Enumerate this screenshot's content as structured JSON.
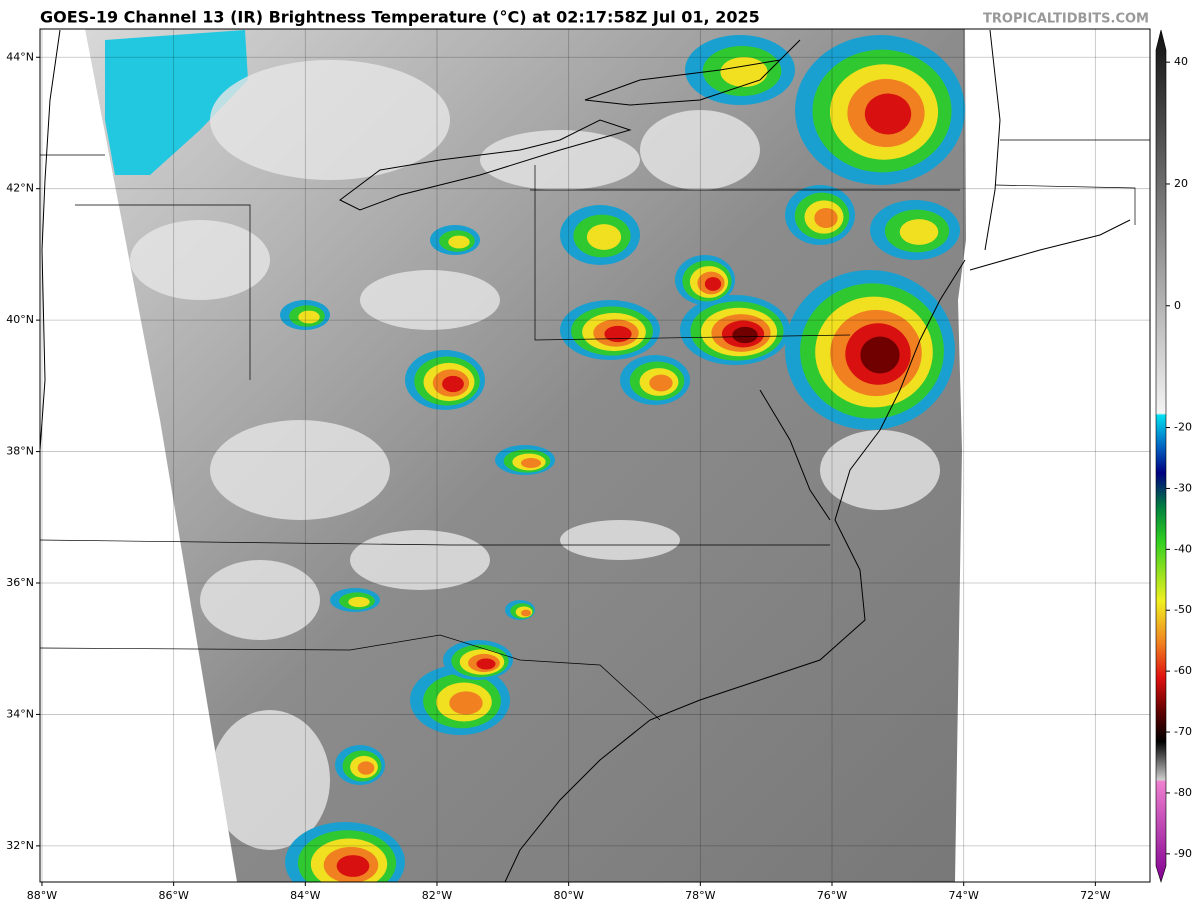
{
  "header": {
    "title": "GOES-19 Channel 13 (IR) Brightness Temperature (°C) at 02:17:58Z Jul 01, 2025",
    "credit": "TROPICALTIDBITS.COM"
  },
  "map": {
    "xlim": [
      -88.03,
      -71.17
    ],
    "ylim": [
      31.45,
      44.43
    ],
    "xticks": [
      {
        "value": -88,
        "label": "88°W"
      },
      {
        "value": -86,
        "label": "86°W"
      },
      {
        "value": -84,
        "label": "84°W"
      },
      {
        "value": -82,
        "label": "82°W"
      },
      {
        "value": -80,
        "label": "80°W"
      },
      {
        "value": -78,
        "label": "78°W"
      },
      {
        "value": -76,
        "label": "76°W"
      },
      {
        "value": -74,
        "label": "74°W"
      },
      {
        "value": -72,
        "label": "72°W"
      }
    ],
    "yticks": [
      {
        "value": 32,
        "label": "32°N"
      },
      {
        "value": 34,
        "label": "34°N"
      },
      {
        "value": 36,
        "label": "36°N"
      },
      {
        "value": 38,
        "label": "38°N"
      },
      {
        "value": 40,
        "label": "40°N"
      },
      {
        "value": 42,
        "label": "42°N"
      },
      {
        "value": 44,
        "label": "44°N"
      }
    ]
  },
  "colorbar": {
    "lim": [
      -92,
      42
    ],
    "ticks": [
      40,
      20,
      0,
      -20,
      -30,
      -40,
      -50,
      -60,
      -70,
      -80,
      -90
    ]
  }
}
